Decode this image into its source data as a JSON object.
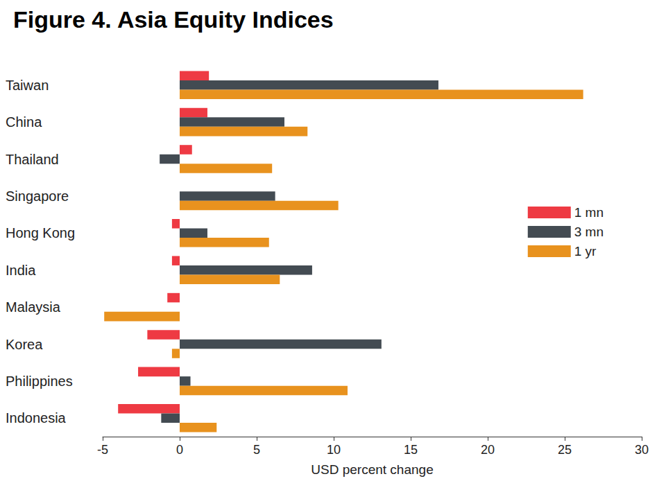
{
  "chart_data": {
    "type": "bar",
    "title": "Figure 4. Asia Equity Indices",
    "xlabel": "USD percent change",
    "orientation": "horizontal",
    "categories": [
      "Taiwan",
      "China",
      "Thailand",
      "Singapore",
      "Hong Kong",
      "India",
      "Malaysia",
      "Korea",
      "Philippines",
      "Indonesia"
    ],
    "series": [
      {
        "name": "1 mn",
        "color": "#ee3a43",
        "values": [
          1.9,
          1.8,
          0.8,
          0,
          -0.5,
          -0.5,
          -0.8,
          -2.1,
          -2.7,
          -4.0
        ]
      },
      {
        "name": "3 mn",
        "color": "#434b52",
        "values": [
          16.8,
          6.8,
          -1.3,
          6.2,
          1.8,
          8.6,
          0,
          13.1,
          0.7,
          -1.2
        ]
      },
      {
        "name": "1 yr",
        "color": "#e8921e",
        "values": [
          26.2,
          8.3,
          6.0,
          10.3,
          5.8,
          6.5,
          -4.9,
          -0.5,
          10.9,
          2.4
        ]
      }
    ],
    "xlim": [
      -5,
      30
    ],
    "xticks": [
      -5,
      0,
      5,
      10,
      15,
      20,
      25,
      30
    ],
    "grid": false,
    "legend": "right"
  }
}
